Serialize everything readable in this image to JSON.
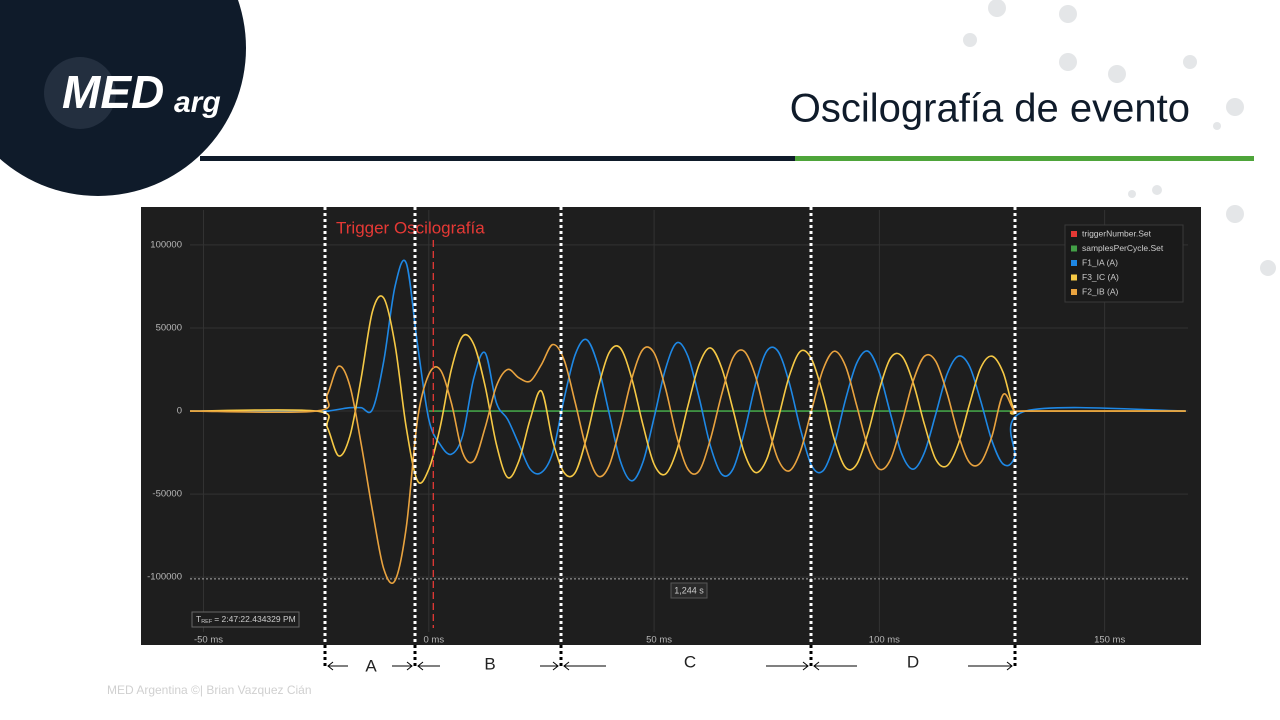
{
  "slide": {
    "logo": {
      "main": "MED",
      "suffix": "arg"
    },
    "title": "Oscilografía de evento",
    "footer": "MED Argentina ©| Brian Vazquez Cián",
    "segments": [
      "A",
      "B",
      "C",
      "D"
    ]
  },
  "chart_data": {
    "type": "line",
    "x": [
      -53,
      -25,
      -22.5,
      -20,
      -17.5,
      -15,
      -12.5,
      -10,
      -7.5,
      -5,
      -2.5,
      0,
      2.5,
      5,
      7.5,
      10,
      12.5,
      15,
      17.5,
      20,
      22.5,
      25,
      27.5,
      30,
      32.5,
      35,
      37.5,
      40,
      42.5,
      45,
      47.5,
      50,
      52.5,
      55,
      57.5,
      60,
      62.5,
      65,
      67.5,
      70,
      72.5,
      75,
      77.5,
      80,
      82.5,
      85,
      87.5,
      90,
      92.5,
      95,
      97.5,
      100,
      102.5,
      105,
      107.5,
      110,
      112.5,
      115,
      117.5,
      120,
      122.5,
      125,
      127.5,
      130,
      132.5,
      168
    ],
    "series": [
      {
        "name": "triggerNumber.Set",
        "color": "#e53935",
        "values": [
          null,
          null,
          null,
          null,
          null,
          null,
          null,
          null,
          null,
          null,
          null,
          null,
          null,
          null,
          null,
          null,
          null,
          null,
          null,
          null,
          null,
          null,
          null,
          null,
          null,
          null,
          null,
          null,
          null,
          null,
          null,
          null,
          null,
          null,
          null,
          null,
          null,
          null,
          null,
          null,
          null,
          null,
          null,
          null,
          null,
          null,
          null,
          null,
          null,
          null,
          null,
          null,
          null,
          null,
          null,
          null,
          null,
          null,
          null,
          null,
          null,
          null,
          null,
          null,
          null,
          null
        ]
      },
      {
        "name": "samplesPerCycle.Set",
        "color": "#43a047",
        "values": [
          null,
          null,
          null,
          null,
          null,
          null,
          null,
          null,
          null,
          null,
          null,
          0,
          0,
          0,
          0,
          0,
          0,
          0,
          0,
          0,
          0,
          0,
          0,
          0,
          0,
          0,
          0,
          0,
          0,
          0,
          0,
          0,
          0,
          0,
          0,
          0,
          0,
          0,
          0,
          0,
          0,
          0,
          0,
          0,
          0,
          0,
          0,
          0,
          0,
          0,
          0,
          0,
          0,
          0,
          0,
          0,
          0,
          0,
          0,
          0,
          0,
          0,
          0,
          0,
          null,
          null
        ]
      },
      {
        "name": "F1_IA (A)",
        "color": "#1e88e5",
        "values": [
          0,
          0,
          0,
          1000,
          2000,
          2000,
          1000,
          30000,
          75000,
          89000,
          40000,
          -5000,
          -20000,
          -26000,
          -15000,
          20000,
          35000,
          5000,
          -5000,
          -20000,
          -35000,
          -37000,
          -25000,
          7000,
          34000,
          43000,
          28000,
          -1000,
          -30000,
          -42000,
          -31000,
          -4000,
          25000,
          41000,
          33000,
          8000,
          -21000,
          -38000,
          -35000,
          -13000,
          16000,
          36000,
          36000,
          17000,
          -11000,
          -33000,
          -36000,
          -20000,
          7000,
          29000,
          36000,
          23000,
          -2000,
          -26000,
          -35000,
          -25000,
          -2000,
          22000,
          33000,
          27000,
          6000,
          -18000,
          -32000,
          -28000,
          0,
          0
        ]
      },
      {
        "name": "F3_IC (A)",
        "color": "#f6c945",
        "values": [
          0,
          0,
          -10000,
          -27000,
          -15000,
          20000,
          60000,
          68000,
          40000,
          -10000,
          -42000,
          -35000,
          -10000,
          25000,
          45000,
          40000,
          15000,
          -20000,
          -40000,
          -30000,
          -5000,
          12000,
          -18000,
          -37000,
          -37000,
          -16000,
          13000,
          35000,
          38000,
          20000,
          -8000,
          -32000,
          -38000,
          -24000,
          3000,
          28000,
          38000,
          26000,
          1000,
          -25000,
          -37000,
          -29000,
          -5000,
          21000,
          36000,
          31000,
          10000,
          -17000,
          -34000,
          -32000,
          -13000,
          13000,
          32000,
          33000,
          17000,
          -8000,
          -29000,
          -33000,
          -20000,
          4000,
          26000,
          33000,
          23000,
          0,
          0,
          0
        ]
      },
      {
        "name": "F2_IB (A)",
        "color": "#e9a33f",
        "values": [
          0,
          0,
          10000,
          27000,
          15000,
          -20000,
          -60000,
          -95000,
          -102000,
          -70000,
          -5000,
          22000,
          25000,
          5000,
          -25000,
          -30000,
          -10000,
          15000,
          25000,
          20000,
          18000,
          28000,
          40000,
          31000,
          5000,
          -23000,
          -39000,
          -33000,
          -9000,
          19000,
          37000,
          35000,
          14000,
          -15000,
          -35000,
          -36000,
          -17000,
          10000,
          32000,
          36000,
          21000,
          -6000,
          -29000,
          -36000,
          -24000,
          1000,
          25000,
          36000,
          27000,
          3000,
          -22000,
          -35000,
          -29000,
          -7000,
          18000,
          33000,
          30000,
          11000,
          -14000,
          -31000,
          -31000,
          -15000,
          10000,
          0,
          0,
          0
        ]
      }
    ],
    "xlim": [
      -53,
      168.5
    ],
    "ylim": [
      -133000,
      118000
    ],
    "xticks": [
      {
        "value": -50,
        "label": "-50 ms"
      },
      {
        "value": 0,
        "label": "0 ms"
      },
      {
        "value": 50,
        "label": "50 ms"
      },
      {
        "value": 100,
        "label": "100 ms"
      },
      {
        "value": 150,
        "label": "150 ms"
      }
    ],
    "yticks": [
      -100000,
      -50000,
      0,
      50000,
      100000
    ],
    "grid": true,
    "legend": "top-right",
    "trigger": {
      "label": "Trigger Oscilografía",
      "x": 1,
      "color": "#e53935"
    },
    "crosshair_y": -101000,
    "cursor_label": "1,244 s",
    "t_ref": {
      "symbol": "T",
      "subscript": "REF",
      "text": "= 2:47:22.434329 PM"
    }
  }
}
